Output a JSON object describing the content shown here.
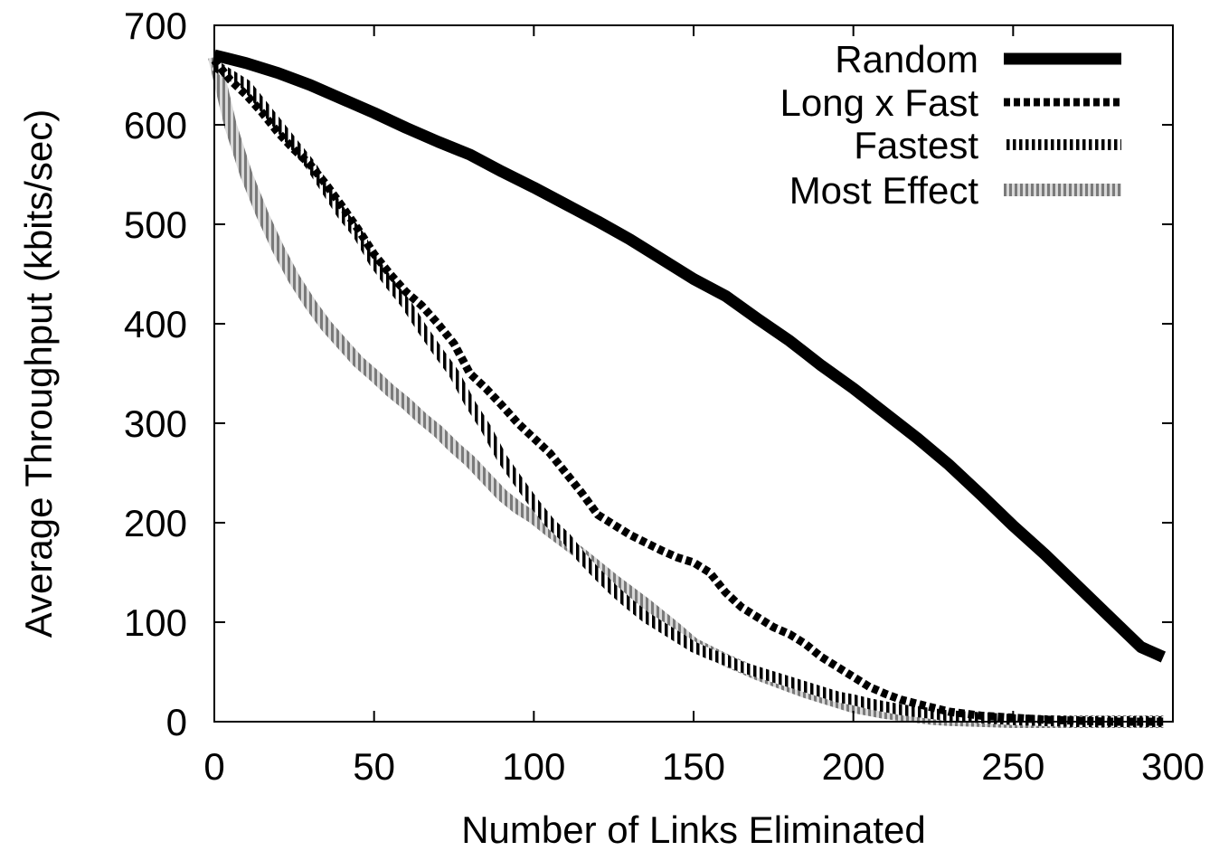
{
  "chart_data": {
    "type": "line",
    "title": "",
    "xlabel": "Number of Links Eliminated",
    "ylabel": "Average Throughput (kbits/sec)",
    "xlim": [
      0,
      300
    ],
    "ylim": [
      0,
      700
    ],
    "xticks": [
      "0",
      "50",
      "100",
      "150",
      "200",
      "250",
      "300"
    ],
    "yticks": [
      "0",
      "100",
      "200",
      "300",
      "400",
      "500",
      "600",
      "700"
    ],
    "grid": false,
    "legend_position": "top-right",
    "series": [
      {
        "name": "Random",
        "style": "solid",
        "color": "#000000",
        "x": [
          0,
          10,
          20,
          30,
          40,
          50,
          60,
          70,
          80,
          90,
          100,
          110,
          120,
          130,
          140,
          150,
          160,
          170,
          180,
          190,
          200,
          210,
          220,
          230,
          240,
          250,
          260,
          270,
          280,
          290,
          297
        ],
        "y": [
          670,
          662,
          652,
          640,
          626,
          612,
          597,
          583,
          570,
          553,
          537,
          520,
          503,
          485,
          465,
          445,
          428,
          405,
          383,
          358,
          335,
          310,
          285,
          258,
          228,
          197,
          168,
          137,
          106,
          75,
          65
        ]
      },
      {
        "name": "Long x Fast",
        "style": "dashed",
        "color": "#000000",
        "x": [
          0,
          5,
          10,
          15,
          20,
          25,
          30,
          35,
          40,
          45,
          50,
          55,
          60,
          65,
          70,
          75,
          80,
          85,
          90,
          95,
          100,
          105,
          110,
          115,
          120,
          125,
          130,
          135,
          140,
          145,
          150,
          155,
          160,
          165,
          170,
          175,
          180,
          185,
          190,
          195,
          200,
          205,
          210,
          215,
          220,
          225,
          230,
          240,
          250,
          260,
          270,
          280,
          290,
          297
        ],
        "y": [
          665,
          645,
          630,
          612,
          592,
          575,
          560,
          540,
          518,
          495,
          470,
          450,
          432,
          418,
          400,
          380,
          350,
          335,
          318,
          300,
          285,
          270,
          250,
          230,
          208,
          198,
          188,
          180,
          172,
          165,
          160,
          150,
          130,
          115,
          105,
          95,
          88,
          78,
          65,
          55,
          45,
          35,
          28,
          22,
          18,
          14,
          10,
          6,
          4,
          2,
          1,
          0,
          0,
          0
        ]
      },
      {
        "name": "Fastest",
        "style": "dotted",
        "color": "#000000",
        "x": [
          0,
          5,
          10,
          15,
          20,
          25,
          30,
          35,
          40,
          45,
          50,
          55,
          60,
          65,
          70,
          75,
          80,
          85,
          90,
          95,
          100,
          105,
          110,
          115,
          120,
          125,
          130,
          135,
          140,
          145,
          150,
          155,
          160,
          165,
          170,
          175,
          180,
          185,
          190,
          195,
          200,
          205,
          210,
          215,
          220,
          225,
          230,
          240,
          250,
          260,
          270,
          280,
          290,
          297
        ],
        "y": [
          660,
          650,
          640,
          620,
          600,
          580,
          560,
          535,
          510,
          490,
          462,
          440,
          420,
          395,
          372,
          350,
          320,
          295,
          265,
          242,
          220,
          200,
          185,
          165,
          148,
          132,
          118,
          105,
          95,
          85,
          75,
          68,
          62,
          55,
          50,
          45,
          40,
          35,
          30,
          25,
          22,
          18,
          15,
          12,
          10,
          8,
          6,
          4,
          2,
          1,
          0,
          0,
          0,
          0
        ]
      },
      {
        "name": "Most Effect",
        "style": "gray",
        "color": "#8c8c8c",
        "x": [
          0,
          5,
          10,
          15,
          20,
          25,
          30,
          35,
          40,
          45,
          50,
          55,
          60,
          65,
          70,
          75,
          80,
          85,
          90,
          95,
          100,
          105,
          110,
          115,
          120,
          125,
          130,
          135,
          140,
          145,
          150,
          155,
          160,
          165,
          170,
          175,
          180,
          185,
          190,
          195,
          200,
          205,
          210,
          215,
          220,
          225,
          230,
          240,
          250,
          260,
          270,
          280,
          290,
          297
        ],
        "y": [
          668,
          600,
          550,
          510,
          475,
          445,
          420,
          398,
          380,
          362,
          348,
          333,
          320,
          305,
          292,
          276,
          262,
          245,
          228,
          215,
          205,
          192,
          180,
          168,
          155,
          142,
          130,
          118,
          105,
          92,
          78,
          70,
          62,
          55,
          48,
          42,
          36,
          30,
          25,
          20,
          15,
          12,
          9,
          7,
          5,
          3,
          2,
          1,
          0,
          0,
          0,
          0,
          0,
          0
        ]
      }
    ]
  }
}
